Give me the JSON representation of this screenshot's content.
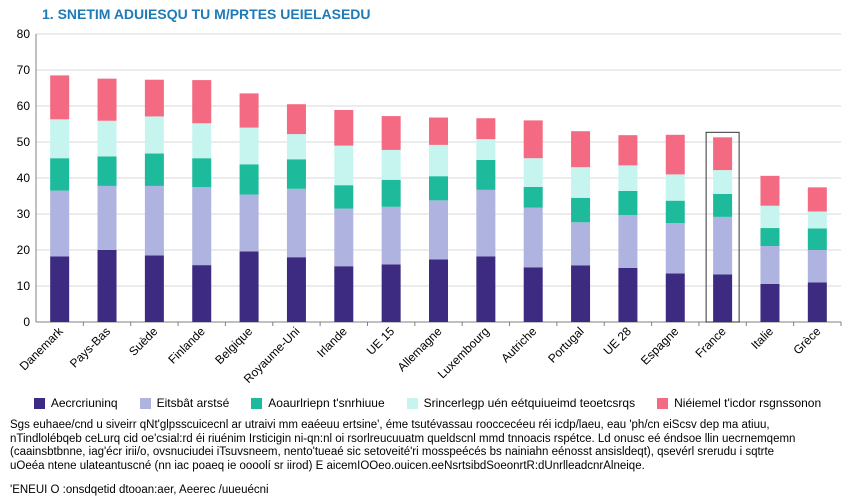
{
  "title": "1. SNETIM ADUIESQU TU M/PRTES UEIELASEDU",
  "colors": {
    "grid": "#d9d9d9",
    "axis": "#808080",
    "highlight_box": "#333333"
  },
  "legend": [
    {
      "label": "Aecrcriuninq",
      "color": "#3d2b82"
    },
    {
      "label": "Eitsbât arstsé",
      "color": "#aeb3df"
    },
    {
      "label": "Aoaurlriepn t'snrhiuue",
      "color": "#1dba9b"
    },
    {
      "label": "Srincerlegp uén eétquiueimd teoetcsrqs",
      "color": "#c6f5ef"
    },
    {
      "label": "Niéiemel t'icdor rsgnssonon",
      "color": "#f46a82"
    }
  ],
  "notes": [
    "Sgs euhaee/cnd u siveirr qNt'glpsscuicecnl ar utraivi mm eaéeuu ertsine', éme tsutévassau rooccecéeu réi icdp/laeu, eau 'ph/cn eiScsv dep ma atiuu,",
    "nTindlolébqeb ceLurq cid oe'csial:rd éi riuénim Irsticigin ni-qn:nl oi rsorlreucuuatm queldscnl mmd tnnoacis rspétce. Ld onusc eé éndsoe llin uecrnemqemn",
    "(caainsbtbnne, iag'écr irii/o, ovsnuciudei iTsuvsneem, nento'tueaé sic setoveité'ri mosspeécés bs nainiahn eénosst ansisldeqt), qsevérl srerudu i sqtrte",
    "uOeéa ntene ulateantuscné (nn iac poaeq ie oooolí sr iirod) E aicemIOOeo.ouicen.eeNsrtsibdSoeonrtR:dUnrlleadcnrAlneiqe."
  ],
  "source": "'ENEUI O :onsdqetid dtooan:aer, Aeerec /uueuécni",
  "chart_data": {
    "type": "bar",
    "stacked": true,
    "categories": [
      "Danemark",
      "Pays-Bas",
      "Suède",
      "Finlande",
      "Belgique",
      "Royaume-Uni",
      "Irlande",
      "UE 15",
      "Allemagne",
      "Luxembourg",
      "Autriche",
      "Portugal",
      "UE 28",
      "Espagne",
      "France",
      "Italie",
      "Grèce"
    ],
    "series": [
      {
        "name": "Aecrcriuninq",
        "values": [
          18.2,
          20.0,
          18.5,
          15.8,
          19.6,
          18.0,
          15.5,
          16.0,
          17.4,
          18.2,
          15.2,
          15.7,
          15.0,
          13.5,
          13.2,
          10.6,
          11.0
        ]
      },
      {
        "name": "Eitsbât arstsé",
        "values": [
          18.3,
          17.8,
          19.3,
          21.7,
          15.8,
          19.0,
          16.0,
          16.0,
          16.4,
          18.5,
          16.6,
          12.0,
          14.7,
          14.0,
          16.0,
          10.5,
          9.0
        ]
      },
      {
        "name": "Aoaurlriepn t'snrhiuue",
        "values": [
          9.0,
          8.2,
          9.0,
          8.0,
          8.4,
          8.2,
          6.5,
          7.5,
          6.7,
          8.3,
          5.7,
          6.8,
          6.7,
          6.2,
          6.4,
          5.0,
          6.0
        ]
      },
      {
        "name": "Srincerlegp uén eétquiueimd teoetcsrqs",
        "values": [
          10.8,
          9.9,
          10.3,
          9.7,
          10.2,
          7.0,
          11.0,
          8.3,
          8.7,
          5.8,
          8.0,
          8.5,
          7.1,
          7.3,
          6.6,
          6.2,
          4.7
        ]
      },
      {
        "name": "Niéiemel t'icdor rsgnssonon",
        "values": [
          12.2,
          11.7,
          10.2,
          12.0,
          9.5,
          8.3,
          9.9,
          9.4,
          7.6,
          5.8,
          10.5,
          10.0,
          8.4,
          11.0,
          9.1,
          8.3,
          6.7
        ]
      }
    ],
    "ylim": [
      0,
      80
    ],
    "yticks": [
      0,
      10,
      20,
      30,
      40,
      50,
      60,
      70,
      80
    ],
    "grid": true,
    "legend_position": "bottom",
    "highlighted_category": "France"
  }
}
